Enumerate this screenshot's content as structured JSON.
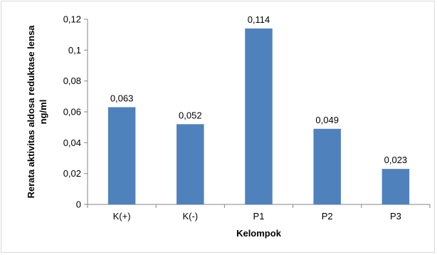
{
  "chart_data": {
    "type": "bar",
    "categories": [
      "K(+)",
      "K(-)",
      "P1",
      "P2",
      "P3"
    ],
    "values": [
      0.063,
      0.052,
      0.114,
      0.049,
      0.023
    ],
    "value_labels": [
      "0,063",
      "0,052",
      "0,114",
      "0,049",
      "0,023"
    ],
    "xlabel": "Kelompok",
    "ylabel_line1": "Rerata aktivitas aldosa reduktase lensa",
    "ylabel_line2": "ng/ml",
    "ylim": [
      0,
      0.12
    ],
    "yticks": [
      0,
      0.02,
      0.04,
      0.06,
      0.08,
      0.1,
      0.12
    ],
    "ytick_labels": [
      "0",
      "0,02",
      "0,04",
      "0,06",
      "0,08",
      "0,1",
      "0,12"
    ],
    "grid": false,
    "legend": "none",
    "bar_color": "#4f81bd"
  }
}
